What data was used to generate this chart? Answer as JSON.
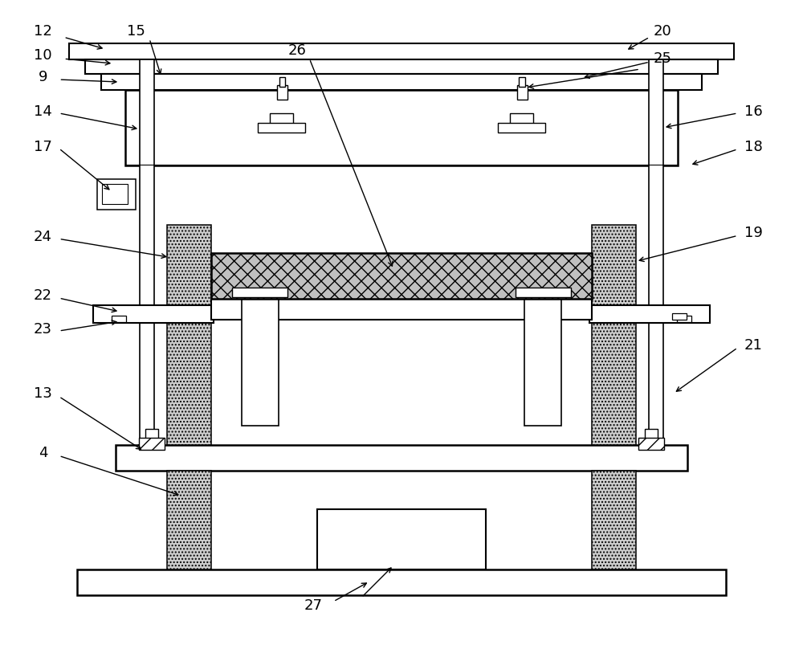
{
  "bg_color": "#ffffff",
  "lc": "#000000",
  "fig_w": 10.0,
  "fig_h": 8.13,
  "dpi": 100
}
